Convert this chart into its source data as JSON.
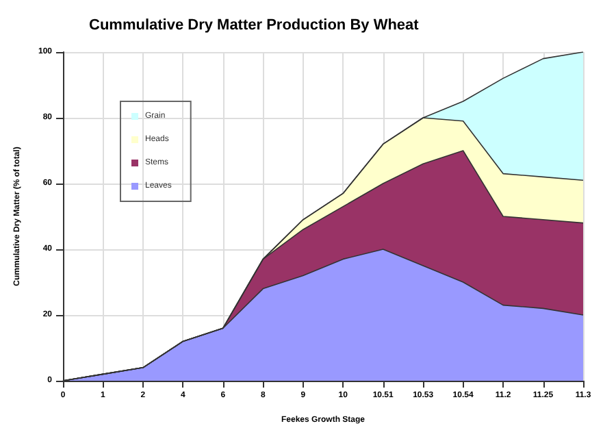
{
  "chart_data": {
    "type": "area",
    "stacked": true,
    "title": "Cummulative Dry Matter Production By Wheat",
    "xlabel": "Feekes Growth Stage",
    "ylabel": "Cummulative Dry Matter (% of total)",
    "categories": [
      "0",
      "1",
      "2",
      "4",
      "6",
      "8",
      "9",
      "10",
      "10.51",
      "10.53",
      "10.54",
      "11.2",
      "11.25",
      "11.3"
    ],
    "series": [
      {
        "name": "Leaves",
        "color": "#9999ff",
        "values": [
          0,
          2,
          4,
          12,
          16,
          28,
          32,
          37,
          40,
          35,
          30,
          23,
          22,
          20
        ]
      },
      {
        "name": "Stems",
        "color": "#993366",
        "values": [
          0,
          0,
          0,
          0,
          0,
          9,
          14,
          16,
          20,
          31,
          40,
          27,
          27,
          28
        ]
      },
      {
        "name": "Heads",
        "color": "#ffffcc",
        "values": [
          0,
          0,
          0,
          0,
          0,
          0,
          3,
          4,
          12,
          14,
          9,
          13,
          13,
          13
        ]
      },
      {
        "name": "Grain",
        "color": "#ccffff",
        "values": [
          0,
          0,
          0,
          0,
          0,
          0,
          0,
          0,
          0,
          0,
          6,
          29,
          36,
          39
        ]
      }
    ],
    "ylim": [
      0,
      100
    ],
    "yticks": [
      0,
      20,
      40,
      60,
      80,
      100
    ],
    "grid": true,
    "legend": "top left",
    "marker": "none",
    "line_style": "solid"
  }
}
